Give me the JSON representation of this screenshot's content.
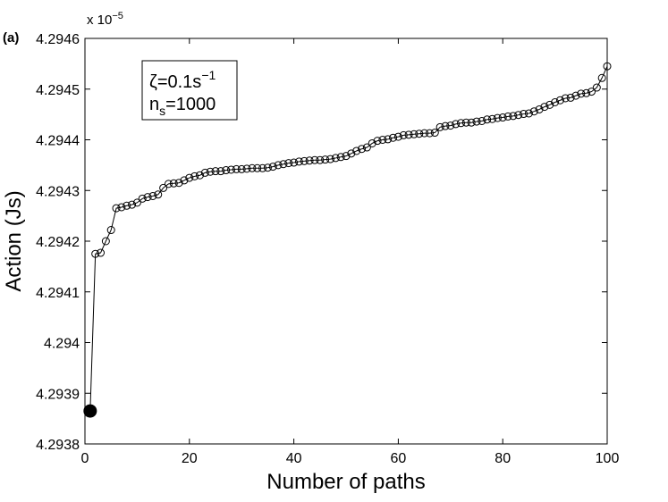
{
  "panel_label": "(a)",
  "annotation": {
    "line1": {
      "base": "ζ=0.1s",
      "sup": "−1"
    },
    "line2": {
      "base": "n",
      "sub": "s",
      "rest": "=1000"
    }
  },
  "chart_data": {
    "type": "scatter",
    "title": "",
    "xlabel": "Number of paths",
    "ylabel": "Action (Js)",
    "y_multiplier": {
      "base": "x 10",
      "exponent": "−5"
    },
    "xlim": [
      0,
      100
    ],
    "ylim": [
      4.2938,
      4.2946
    ],
    "x_ticks": [
      0,
      20,
      40,
      60,
      80,
      100
    ],
    "x_tick_labels": [
      "0",
      "20",
      "40",
      "60",
      "80",
      "100"
    ],
    "y_ticks": [
      4.2938,
      4.2939,
      4.294,
      4.2941,
      4.2942,
      4.2943,
      4.2944,
      4.2945,
      4.2946
    ],
    "y_tick_labels": [
      "4.2938",
      "4.2939",
      "4.294",
      "4.2941",
      "4.2942",
      "4.2943",
      "4.2944",
      "4.2945",
      "4.2946"
    ],
    "grid": false,
    "marker": "open-circle",
    "highlighted_point": {
      "x": 1,
      "y": 4.293865
    },
    "series": [
      {
        "x": [
          1,
          2,
          3,
          4,
          5,
          6,
          7,
          8,
          9,
          10,
          11,
          12,
          13,
          14,
          15,
          16,
          17,
          18,
          19,
          20,
          21,
          22,
          23,
          24,
          25,
          26,
          27,
          28,
          29,
          30,
          31,
          32,
          33,
          34,
          35,
          36,
          37,
          38,
          39,
          40,
          41,
          42,
          43,
          44,
          45,
          46,
          47,
          48,
          49,
          50,
          51,
          52,
          53,
          54,
          55,
          56,
          57,
          58,
          59,
          60,
          61,
          62,
          63,
          64,
          65,
          66,
          67,
          68,
          69,
          70,
          71,
          72,
          73,
          74,
          75,
          76,
          77,
          78,
          79,
          80,
          81,
          82,
          83,
          84,
          85,
          86,
          87,
          88,
          89,
          90,
          91,
          92,
          93,
          94,
          95,
          96,
          97,
          98,
          99,
          100
        ],
        "y": [
          4.293865,
          4.294175,
          4.294177,
          4.2942,
          4.294222,
          4.294265,
          4.294267,
          4.29427,
          4.294272,
          4.294276,
          4.294284,
          4.294287,
          4.294289,
          4.294292,
          4.294305,
          4.294313,
          4.294314,
          4.294315,
          4.29432,
          4.294325,
          4.294328,
          4.29433,
          4.294335,
          4.294337,
          4.294338,
          4.294338,
          4.29434,
          4.294341,
          4.294342,
          4.294342,
          4.294343,
          4.294344,
          4.294344,
          4.294344,
          4.294345,
          4.294347,
          4.29435,
          4.294352,
          4.294354,
          4.294355,
          4.294357,
          4.294358,
          4.294359,
          4.29436,
          4.29436,
          4.294361,
          4.294362,
          4.294364,
          4.294366,
          4.294368,
          4.294373,
          4.294378,
          4.294382,
          4.294385,
          4.294393,
          4.294398,
          4.2944,
          4.294401,
          4.294404,
          4.294406,
          4.294409,
          4.29441,
          4.294411,
          4.294412,
          4.294413,
          4.294413,
          4.294414,
          4.294425,
          4.294427,
          4.294428,
          4.294431,
          4.294433,
          4.294434,
          4.294434,
          4.294436,
          4.294437,
          4.29444,
          4.294441,
          4.294443,
          4.294444,
          4.294446,
          4.294447,
          4.294449,
          4.294451,
          4.294452,
          4.294456,
          4.29446,
          4.294465,
          4.294469,
          4.294474,
          4.294478,
          4.294482,
          4.294483,
          4.294487,
          4.294491,
          4.294492,
          4.294495,
          4.294503,
          4.294522,
          4.294545
        ]
      }
    ]
  }
}
